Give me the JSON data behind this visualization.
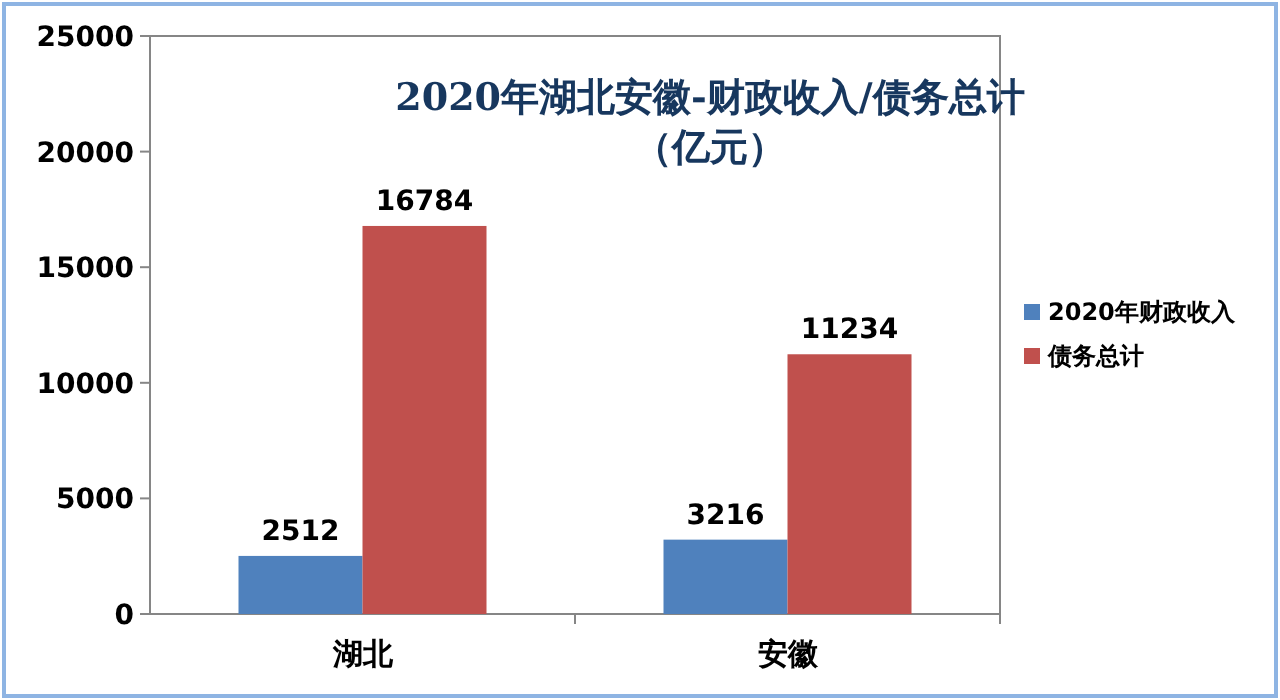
{
  "chart_data": {
    "type": "bar",
    "title": "2020年湖北安徽-财政收入/债务总计",
    "subtitle": "（亿元）",
    "categories": [
      "湖北",
      "安徽"
    ],
    "series": [
      {
        "name": "2020年财政收入",
        "color": "#4f81bd",
        "values": [
          2512,
          3216
        ]
      },
      {
        "name": "债务总计",
        "color": "#c0504d",
        "values": [
          16784,
          11234
        ]
      }
    ],
    "ylim": [
      0,
      25000
    ],
    "yticks": [
      0,
      5000,
      10000,
      15000,
      20000,
      25000
    ],
    "grid": false,
    "legend": "right",
    "data_labels": true
  }
}
